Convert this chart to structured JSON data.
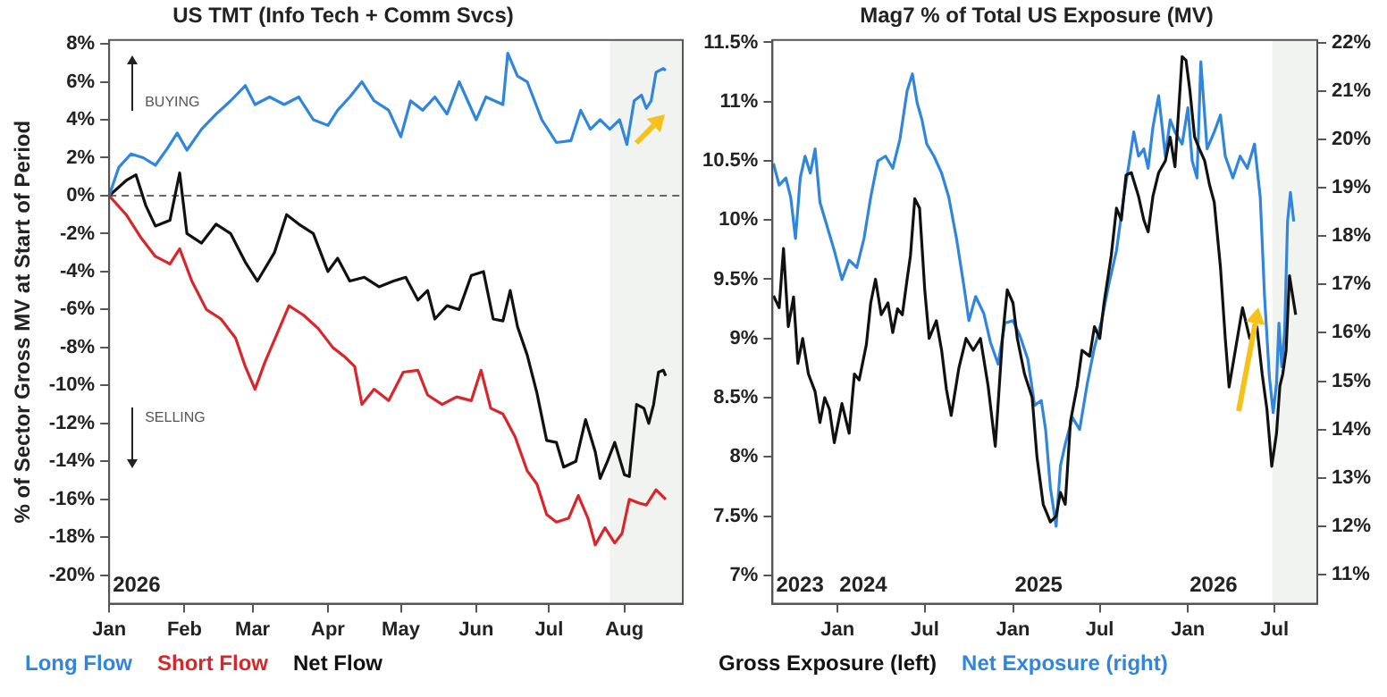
{
  "chart_data": [
    {
      "type": "line",
      "title": "US TMT (Info Tech + Comm Svcs)",
      "ylabel": "% of Sector Gross MV at Start of Period",
      "legend": "bottom",
      "grid": false,
      "xlim": [
        "2026-01-01",
        "2026-08-25"
      ],
      "xticks": [
        {
          "value": "2026-01-01",
          "label": "Jan"
        },
        {
          "value": "2026-02-01",
          "label": "Feb"
        },
        {
          "value": "2026-03-01",
          "label": "Mar"
        },
        {
          "value": "2026-04-01",
          "label": "Apr"
        },
        {
          "value": "2026-05-01",
          "label": "May"
        },
        {
          "value": "2026-06-01",
          "label": "Jun"
        },
        {
          "value": "2026-07-01",
          "label": "Jul"
        },
        {
          "value": "2026-08-01",
          "label": "Aug"
        }
      ],
      "ylim": [
        -21.5,
        8.2
      ],
      "yticks": [
        {
          "value": -20,
          "label": "-20%"
        },
        {
          "value": -18,
          "label": "-18%"
        },
        {
          "value": -16,
          "label": "-16%"
        },
        {
          "value": -14,
          "label": "-14%"
        },
        {
          "value": -12,
          "label": "-12%"
        },
        {
          "value": -10,
          "label": "-10%"
        },
        {
          "value": -8,
          "label": "-8%"
        },
        {
          "value": -6,
          "label": "-6%"
        },
        {
          "value": -4,
          "label": "-4%"
        },
        {
          "value": -2,
          "label": "-2%"
        },
        {
          "value": 0,
          "label": "0%"
        },
        {
          "value": 2,
          "label": "2%"
        },
        {
          "value": 4,
          "label": "4%"
        },
        {
          "value": 6,
          "label": "6%"
        },
        {
          "value": 8,
          "label": "8%"
        }
      ],
      "ref_lines": [
        {
          "axis": "y",
          "value": 0,
          "color": "#666666",
          "line_style": "dashed"
        }
      ],
      "bands": [
        {
          "axis": "x",
          "from": "2026-07-26",
          "to": "2026-08-25",
          "color": "#f1f3f0"
        }
      ],
      "annotations": [
        "BUYING",
        "SELLING",
        "2026"
      ],
      "series": [
        {
          "name": "Long Flow",
          "color": "#2f86dc",
          "x": [
            "2026-01-01",
            "2026-01-05",
            "2026-01-10",
            "2026-01-15",
            "2026-01-20",
            "2026-01-25",
            "2026-01-29",
            "2026-02-02",
            "2026-02-08",
            "2026-02-14",
            "2026-02-20",
            "2026-02-26",
            "2026-03-02",
            "2026-03-08",
            "2026-03-14",
            "2026-03-20",
            "2026-03-26",
            "2026-04-01",
            "2026-04-05",
            "2026-04-10",
            "2026-04-15",
            "2026-04-20",
            "2026-04-26",
            "2026-05-01",
            "2026-05-05",
            "2026-05-10",
            "2026-05-15",
            "2026-05-20",
            "2026-05-25",
            "2026-06-01",
            "2026-06-05",
            "2026-06-12",
            "2026-06-14",
            "2026-06-18",
            "2026-06-22",
            "2026-06-28",
            "2026-07-04",
            "2026-07-10",
            "2026-07-14",
            "2026-07-18",
            "2026-07-22",
            "2026-07-26",
            "2026-07-30",
            "2026-08-02",
            "2026-08-05",
            "2026-08-08",
            "2026-08-10",
            "2026-08-12",
            "2026-08-14",
            "2026-08-17",
            "2026-08-18"
          ],
          "values": [
            0,
            1.5,
            2.2,
            2.0,
            1.6,
            2.5,
            3.3,
            2.4,
            3.5,
            4.3,
            5.0,
            5.8,
            4.8,
            5.2,
            4.8,
            5.2,
            4.0,
            3.7,
            4.5,
            5.2,
            6.0,
            5.0,
            4.5,
            3.1,
            5.0,
            4.5,
            5.2,
            4.3,
            6.0,
            4.0,
            5.2,
            4.8,
            7.5,
            6.3,
            6.0,
            4.0,
            2.8,
            2.9,
            4.5,
            3.5,
            4.0,
            3.5,
            4.0,
            2.7,
            5.0,
            5.3,
            4.6,
            5.0,
            6.5,
            6.7,
            6.6
          ]
        },
        {
          "name": "Short Flow",
          "color": "#d9262b",
          "x": [
            "2026-01-01",
            "2026-01-08",
            "2026-01-14",
            "2026-01-20",
            "2026-01-26",
            "2026-01-30",
            "2026-02-04",
            "2026-02-10",
            "2026-02-16",
            "2026-02-22",
            "2026-02-26",
            "2026-03-02",
            "2026-03-06",
            "2026-03-12",
            "2026-03-16",
            "2026-03-22",
            "2026-03-28",
            "2026-04-03",
            "2026-04-08",
            "2026-04-12",
            "2026-04-15",
            "2026-04-20",
            "2026-04-26",
            "2026-05-02",
            "2026-05-08",
            "2026-05-12",
            "2026-05-18",
            "2026-05-24",
            "2026-05-30",
            "2026-06-03",
            "2026-06-07",
            "2026-06-12",
            "2026-06-17",
            "2026-06-22",
            "2026-06-26",
            "2026-06-30",
            "2026-07-04",
            "2026-07-09",
            "2026-07-13",
            "2026-07-17",
            "2026-07-20",
            "2026-07-24",
            "2026-07-28",
            "2026-07-31",
            "2026-08-03",
            "2026-08-07",
            "2026-08-10",
            "2026-08-14",
            "2026-08-18"
          ],
          "values": [
            0,
            -1.0,
            -2.2,
            -3.2,
            -3.6,
            -2.8,
            -4.5,
            -6.0,
            -6.5,
            -7.5,
            -9.0,
            -10.2,
            -8.8,
            -7.0,
            -5.8,
            -6.3,
            -7.0,
            -8.0,
            -8.5,
            -9.0,
            -11.0,
            -10.2,
            -10.8,
            -9.3,
            -9.2,
            -10.5,
            -11.0,
            -10.6,
            -10.8,
            -9.2,
            -11.2,
            -11.5,
            -12.7,
            -14.5,
            -15.2,
            -16.8,
            -17.2,
            -17.0,
            -15.8,
            -17.0,
            -18.4,
            -17.5,
            -18.3,
            -17.8,
            -16.0,
            -16.2,
            -16.3,
            -15.5,
            -16.0
          ]
        },
        {
          "name": "Net Flow",
          "color": "#111111",
          "x": [
            "2026-01-01",
            "2026-01-08",
            "2026-01-12",
            "2026-01-16",
            "2026-01-20",
            "2026-01-26",
            "2026-01-30",
            "2026-02-02",
            "2026-02-08",
            "2026-02-14",
            "2026-02-20",
            "2026-02-26",
            "2026-03-03",
            "2026-03-10",
            "2026-03-15",
            "2026-03-20",
            "2026-03-26",
            "2026-04-01",
            "2026-04-05",
            "2026-04-10",
            "2026-04-16",
            "2026-04-22",
            "2026-04-28",
            "2026-05-03",
            "2026-05-08",
            "2026-05-12",
            "2026-05-15",
            "2026-05-20",
            "2026-05-25",
            "2026-05-30",
            "2026-06-04",
            "2026-06-08",
            "2026-06-12",
            "2026-06-15",
            "2026-06-18",
            "2026-06-22",
            "2026-06-26",
            "2026-06-30",
            "2026-07-04",
            "2026-07-07",
            "2026-07-12",
            "2026-07-16",
            "2026-07-20",
            "2026-07-22",
            "2026-07-25",
            "2026-07-28",
            "2026-08-01",
            "2026-08-03",
            "2026-08-06",
            "2026-08-09",
            "2026-08-11",
            "2026-08-13",
            "2026-08-15",
            "2026-08-17",
            "2026-08-18"
          ],
          "values": [
            0,
            0.8,
            1.1,
            -0.5,
            -1.6,
            -1.3,
            1.2,
            -2.0,
            -2.5,
            -1.5,
            -2.0,
            -3.5,
            -4.5,
            -3.0,
            -1.0,
            -1.5,
            -2.0,
            -4.0,
            -3.3,
            -4.5,
            -4.3,
            -4.8,
            -4.5,
            -4.3,
            -5.5,
            -5.0,
            -6.5,
            -5.8,
            -6.0,
            -4.2,
            -4.0,
            -6.5,
            -6.6,
            -5.0,
            -6.9,
            -8.4,
            -10.4,
            -12.9,
            -13.0,
            -14.3,
            -14.0,
            -11.8,
            -13.5,
            -14.9,
            -14.0,
            -13.0,
            -14.7,
            -14.8,
            -11.0,
            -11.2,
            -12.0,
            -11.0,
            -9.3,
            -9.2,
            -9.5
          ]
        }
      ]
    },
    {
      "type": "line",
      "title": "Mag7 % of Total US Exposure (MV)",
      "legend": "bottom",
      "grid": false,
      "xlim": [
        "2023-08-18",
        "2026-09-28"
      ],
      "xticks": [
        {
          "value": "2024-01-01",
          "label": "Jan"
        },
        {
          "value": "2024-07-01",
          "label": "Jul"
        },
        {
          "value": "2025-01-01",
          "label": "Jan"
        },
        {
          "value": "2025-07-01",
          "label": "Jul"
        },
        {
          "value": "2026-01-01",
          "label": "Jan"
        },
        {
          "value": "2026-07-01",
          "label": "Jul"
        }
      ],
      "ylim": [
        6.76,
        11.52
      ],
      "yticks": [
        {
          "value": 7,
          "label": "7%"
        },
        {
          "value": 7.5,
          "label": "7.5%"
        },
        {
          "value": 8,
          "label": "8%"
        },
        {
          "value": 8.5,
          "label": "8.5%"
        },
        {
          "value": 9,
          "label": "9%"
        },
        {
          "value": 9.5,
          "label": "9.5%"
        },
        {
          "value": 10,
          "label": "10%"
        },
        {
          "value": 10.5,
          "label": "10.5%"
        },
        {
          "value": 11,
          "label": "11%"
        },
        {
          "value": 11.5,
          "label": "11.5%"
        }
      ],
      "y2lim": [
        10.4,
        22.05
      ],
      "y2ticks": [
        {
          "value": 11,
          "label": "11%"
        },
        {
          "value": 12,
          "label": "12%"
        },
        {
          "value": 13,
          "label": "13%"
        },
        {
          "value": 14,
          "label": "14%"
        },
        {
          "value": 15,
          "label": "15%"
        },
        {
          "value": 16,
          "label": "16%"
        },
        {
          "value": 17,
          "label": "17%"
        },
        {
          "value": 18,
          "label": "18%"
        },
        {
          "value": 19,
          "label": "19%"
        },
        {
          "value": 20,
          "label": "20%"
        },
        {
          "value": 21,
          "label": "21%"
        },
        {
          "value": 22,
          "label": "22%"
        }
      ],
      "bands": [
        {
          "axis": "x",
          "from": "2026-06-26",
          "to": "2026-09-28",
          "color": "#f1f3f0"
        }
      ],
      "annotations": [
        "2023",
        "2024",
        "2025",
        "2026"
      ],
      "series": [
        {
          "name": "Gross Exposure (left)",
          "color": "#111111",
          "x": [
            "2023-08-20",
            "2023-09-01",
            "2023-09-10",
            "2023-09-20",
            "2023-10-01",
            "2023-10-10",
            "2023-10-20",
            "2023-11-01",
            "2023-11-15",
            "2023-11-25",
            "2023-12-05",
            "2023-12-15",
            "2023-12-25",
            "2024-01-10",
            "2024-01-25",
            "2024-02-05",
            "2024-02-15",
            "2024-03-01",
            "2024-03-10",
            "2024-03-20",
            "2024-04-01",
            "2024-04-15",
            "2024-04-25",
            "2024-05-05",
            "2024-05-15",
            "2024-05-25",
            "2024-06-01",
            "2024-06-10",
            "2024-06-20",
            "2024-07-01",
            "2024-07-10",
            "2024-07-25",
            "2024-08-05",
            "2024-08-15",
            "2024-08-25",
            "2024-09-10",
            "2024-09-25",
            "2024-10-10",
            "2024-10-25",
            "2024-11-10",
            "2024-11-25",
            "2024-12-10",
            "2024-12-20",
            "2025-01-01",
            "2025-01-10",
            "2025-01-25",
            "2025-02-10",
            "2025-02-20",
            "2025-03-05",
            "2025-03-20",
            "2025-04-01",
            "2025-04-10",
            "2025-04-20",
            "2025-05-01",
            "2025-05-15",
            "2025-05-25",
            "2025-06-10",
            "2025-06-20",
            "2025-07-01",
            "2025-07-10",
            "2025-07-25",
            "2025-08-05",
            "2025-08-15",
            "2025-08-25",
            "2025-09-05",
            "2025-09-20",
            "2025-10-01",
            "2025-10-10",
            "2025-10-20",
            "2025-11-01",
            "2025-11-15",
            "2025-11-25",
            "2025-12-05",
            "2025-12-20",
            "2025-12-28",
            "2026-01-05",
            "2026-01-15",
            "2026-01-25",
            "2026-02-05",
            "2026-02-15",
            "2026-02-25",
            "2026-03-10",
            "2026-03-20",
            "2026-03-28",
            "2026-04-10",
            "2026-04-25",
            "2026-05-10",
            "2026-05-25",
            "2026-06-05",
            "2026-06-15",
            "2026-06-25",
            "2026-07-05",
            "2026-07-12",
            "2026-07-18",
            "2026-07-25",
            "2026-08-01",
            "2026-08-08",
            "2026-08-14"
          ],
          "values": [
            9.36,
            9.26,
            9.76,
            9.1,
            9.35,
            8.79,
            9.0,
            8.7,
            8.55,
            8.29,
            8.5,
            8.4,
            8.12,
            8.45,
            8.2,
            8.7,
            8.65,
            8.95,
            9.3,
            9.5,
            9.2,
            9.3,
            9.05,
            9.25,
            9.2,
            9.5,
            9.7,
            10.18,
            10.1,
            9.4,
            9.0,
            9.15,
            8.9,
            8.57,
            8.35,
            8.75,
            9.0,
            8.9,
            9.0,
            8.6,
            8.09,
            9.0,
            9.41,
            9.3,
            9.0,
            8.7,
            8.5,
            8.0,
            7.6,
            7.45,
            7.5,
            7.7,
            7.6,
            8.3,
            8.6,
            8.9,
            8.85,
            9.1,
            9.0,
            9.3,
            9.7,
            10.1,
            10.0,
            10.38,
            10.4,
            10.2,
            10.0,
            9.9,
            10.2,
            10.4,
            10.5,
            10.7,
            10.45,
            11.38,
            11.35,
            11.1,
            10.7,
            10.6,
            10.5,
            10.3,
            10.15,
            9.6,
            9.0,
            8.59,
            8.9,
            9.26,
            9.0,
            9.1,
            8.7,
            8.4,
            7.92,
            8.2,
            8.6,
            8.7,
            8.9,
            9.53,
            9.35,
            9.2
          ]
        },
        {
          "name": "Net Exposure (right)",
          "color": "#2f86dc",
          "axis": "y2",
          "x": [
            "2023-08-20",
            "2023-09-01",
            "2023-09-15",
            "2023-09-25",
            "2023-10-05",
            "2023-10-15",
            "2023-10-25",
            "2023-11-05",
            "2023-11-15",
            "2023-11-25",
            "2023-12-10",
            "2023-12-25",
            "2024-01-10",
            "2024-01-25",
            "2024-02-10",
            "2024-02-25",
            "2024-03-10",
            "2024-03-25",
            "2024-04-10",
            "2024-04-25",
            "2024-05-10",
            "2024-05-25",
            "2024-06-05",
            "2024-06-15",
            "2024-06-25",
            "2024-07-05",
            "2024-07-20",
            "2024-08-05",
            "2024-08-20",
            "2024-09-05",
            "2024-09-20",
            "2024-10-01",
            "2024-10-15",
            "2024-11-01",
            "2024-11-15",
            "2024-12-01",
            "2024-12-15",
            "2025-01-01",
            "2025-01-15",
            "2025-02-01",
            "2025-02-15",
            "2025-03-01",
            "2025-03-10",
            "2025-03-20",
            "2025-04-01",
            "2025-04-10",
            "2025-04-20",
            "2025-05-05",
            "2025-05-20",
            "2025-06-05",
            "2025-06-20",
            "2025-07-05",
            "2025-07-20",
            "2025-08-05",
            "2025-08-20",
            "2025-09-01",
            "2025-09-10",
            "2025-09-20",
            "2025-10-01",
            "2025-10-10",
            "2025-10-20",
            "2025-11-01",
            "2025-11-15",
            "2025-11-25",
            "2025-12-05",
            "2025-12-20",
            "2026-01-01",
            "2026-01-10",
            "2026-01-20",
            "2026-01-28",
            "2026-02-10",
            "2026-02-25",
            "2026-03-10",
            "2026-03-20",
            "2026-04-05",
            "2026-04-20",
            "2026-05-05",
            "2026-05-20",
            "2026-06-01",
            "2026-06-10",
            "2026-06-20",
            "2026-06-28",
            "2026-07-05",
            "2026-07-10",
            "2026-07-16",
            "2026-07-22",
            "2026-07-28",
            "2026-08-03",
            "2026-08-10"
          ],
          "values": [
            19.5,
            19.05,
            19.2,
            18.8,
            17.95,
            19.2,
            19.65,
            19.3,
            19.8,
            18.7,
            18.2,
            17.7,
            17.1,
            17.5,
            17.35,
            17.95,
            18.8,
            19.55,
            19.65,
            19.4,
            20.0,
            21.0,
            21.35,
            20.75,
            20.4,
            19.9,
            19.65,
            19.3,
            18.8,
            17.95,
            17.0,
            16.25,
            16.75,
            16.4,
            15.8,
            15.35,
            16.2,
            16.25,
            15.95,
            15.45,
            14.5,
            14.6,
            14.0,
            12.8,
            12.0,
            13.25,
            13.7,
            14.25,
            14.0,
            14.95,
            15.7,
            16.25,
            17.0,
            17.7,
            18.8,
            19.55,
            20.15,
            19.65,
            19.8,
            19.4,
            20.25,
            20.9,
            19.65,
            20.4,
            20.15,
            19.9,
            20.65,
            19.55,
            19.2,
            21.6,
            19.8,
            20.15,
            20.5,
            19.65,
            19.2,
            19.65,
            19.4,
            19.9,
            18.8,
            16.75,
            15.1,
            14.35,
            14.95,
            16.2,
            15.3,
            16.05,
            18.3,
            18.9,
            18.3
          ]
        }
      ]
    }
  ]
}
